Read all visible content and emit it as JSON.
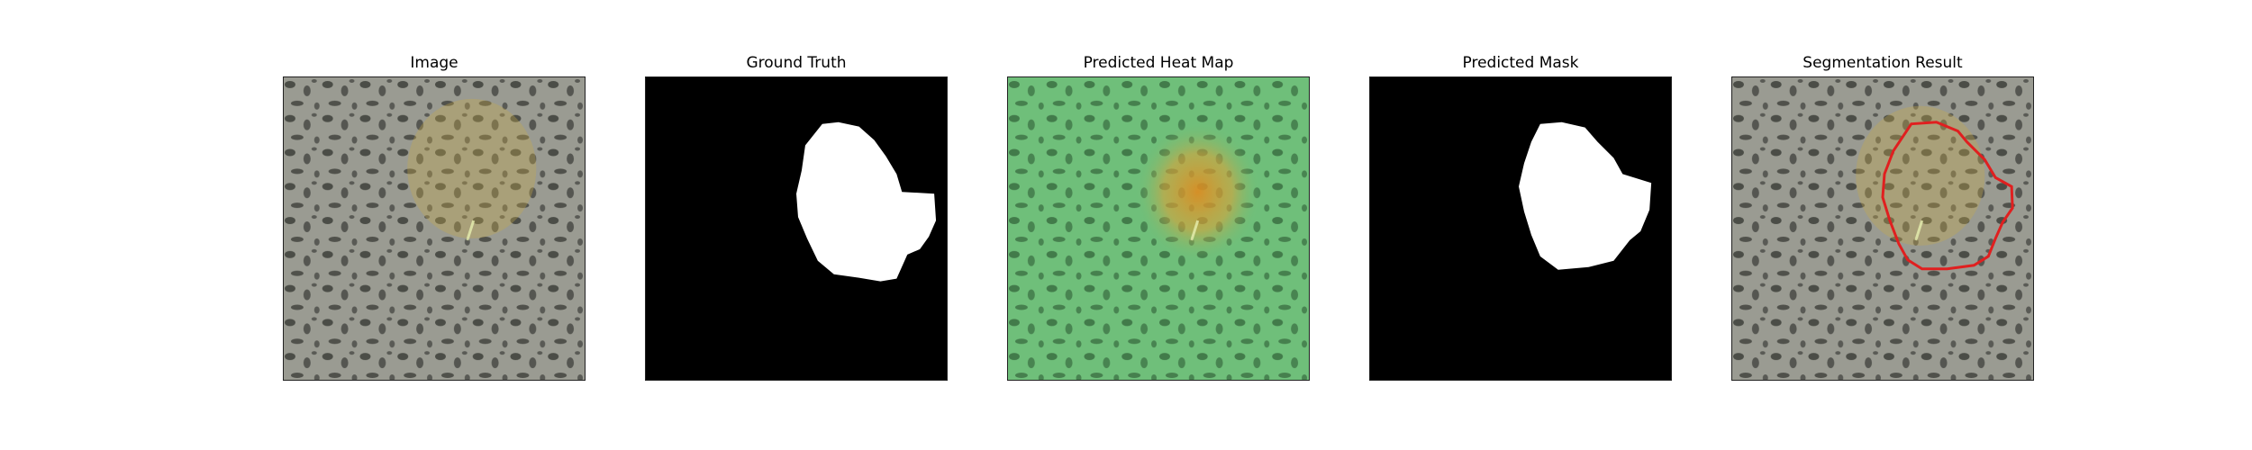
{
  "panels": [
    {
      "title": "Image",
      "kind": "image"
    },
    {
      "title": "Ground Truth",
      "kind": "mask"
    },
    {
      "title": "Predicted Heat Map",
      "kind": "heatmap"
    },
    {
      "title": "Predicted Mask",
      "kind": "mask"
    },
    {
      "title": "Segmentation Result",
      "kind": "overlay"
    }
  ],
  "colors": {
    "texture_base": "#9a9b92",
    "texture_spots": "#3d3f3a",
    "lesion_tint": "#c7a84a",
    "heat_base": "#6fbf7a",
    "heat_hot": "#e08a1e",
    "mask_bg": "#000000",
    "mask_fg": "#ffffff",
    "contour": "#e01f1f"
  }
}
